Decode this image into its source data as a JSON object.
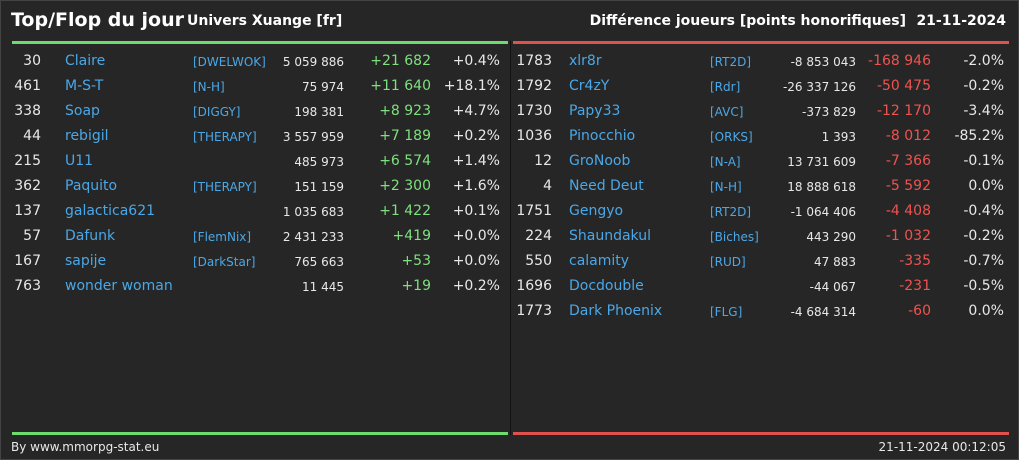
{
  "header": {
    "title": "Top/Flop du jour",
    "universe": "Univers Xuange [fr]",
    "metric": "Différence joueurs [points honorifiques]",
    "date": "21-11-2024"
  },
  "colors": {
    "background": "#262626",
    "player_name": "#4aa8e8",
    "positive": "#7ee07e",
    "negative": "#ef5350",
    "top_bar": "#6cdc6c",
    "flop_bar": "#e0504c"
  },
  "top": [
    {
      "rank": "30",
      "name": "Claire",
      "alliance": "[DWELWOK]",
      "points": "5 059 886",
      "diff": "+21 682",
      "pct": "+0.4%"
    },
    {
      "rank": "461",
      "name": "M-S-T",
      "alliance": "[N-H]",
      "points": "75 974",
      "diff": "+11 640",
      "pct": "+18.1%"
    },
    {
      "rank": "338",
      "name": "Soap",
      "alliance": "[DIGGY]",
      "points": "198 381",
      "diff": "+8 923",
      "pct": "+4.7%"
    },
    {
      "rank": "44",
      "name": "rebigil",
      "alliance": "[THERAPY]",
      "points": "3 557 959",
      "diff": "+7 189",
      "pct": "+0.2%"
    },
    {
      "rank": "215",
      "name": "U11",
      "alliance": "",
      "points": "485 973",
      "diff": "+6 574",
      "pct": "+1.4%"
    },
    {
      "rank": "362",
      "name": "Paquito",
      "alliance": "[THERAPY]",
      "points": "151 159",
      "diff": "+2 300",
      "pct": "+1.6%"
    },
    {
      "rank": "137",
      "name": "galactica621",
      "alliance": "",
      "points": "1 035 683",
      "diff": "+1 422",
      "pct": "+0.1%"
    },
    {
      "rank": "57",
      "name": "Dafunk",
      "alliance": "[FlemNix]",
      "points": "2 431 233",
      "diff": "+419",
      "pct": "+0.0%"
    },
    {
      "rank": "167",
      "name": "sapije",
      "alliance": "[DarkStar]",
      "points": "765 663",
      "diff": "+53",
      "pct": "+0.0%"
    },
    {
      "rank": "763",
      "name": "wonder woman",
      "alliance": "",
      "points": "11 445",
      "diff": "+19",
      "pct": "+0.2%"
    }
  ],
  "flop": [
    {
      "rank": "1783",
      "name": "xlr8r",
      "alliance": "[RT2D]",
      "points": "-8 853 043",
      "diff": "-168 946",
      "pct": "-2.0%"
    },
    {
      "rank": "1792",
      "name": "Cr4zY",
      "alliance": "[Rdr]",
      "points": "-26 337 126",
      "diff": "-50 475",
      "pct": "-0.2%"
    },
    {
      "rank": "1730",
      "name": "Papy33",
      "alliance": "[AVC]",
      "points": "-373 829",
      "diff": "-12 170",
      "pct": "-3.4%"
    },
    {
      "rank": "1036",
      "name": "Pinocchio",
      "alliance": "[ORKS]",
      "points": "1 393",
      "diff": "-8 012",
      "pct": "-85.2%"
    },
    {
      "rank": "12",
      "name": "GroNoob",
      "alliance": "[N-A]",
      "points": "13 731 609",
      "diff": "-7 366",
      "pct": "-0.1%"
    },
    {
      "rank": "4",
      "name": "Need Deut",
      "alliance": "[N-H]",
      "points": "18 888 618",
      "diff": "-5 592",
      "pct": "0.0%"
    },
    {
      "rank": "1751",
      "name": "Gengyo",
      "alliance": "[RT2D]",
      "points": "-1 064 406",
      "diff": "-4 408",
      "pct": "-0.4%"
    },
    {
      "rank": "224",
      "name": "Shaundakul",
      "alliance": "[Biches]",
      "points": "443 290",
      "diff": "-1 032",
      "pct": "-0.2%"
    },
    {
      "rank": "550",
      "name": "calamity",
      "alliance": "[RUD]",
      "points": "47 883",
      "diff": "-335",
      "pct": "-0.7%"
    },
    {
      "rank": "1696",
      "name": "Docdouble",
      "alliance": "",
      "points": "-44 067",
      "diff": "-231",
      "pct": "-0.5%"
    },
    {
      "rank": "1773",
      "name": "Dark Phoenix",
      "alliance": "[FLG]",
      "points": "-4 684 314",
      "diff": "-60",
      "pct": "0.0%"
    }
  ],
  "footer": {
    "source": "By www.mmorpg-stat.eu",
    "timestamp": "21-11-2024 00:12:05"
  }
}
